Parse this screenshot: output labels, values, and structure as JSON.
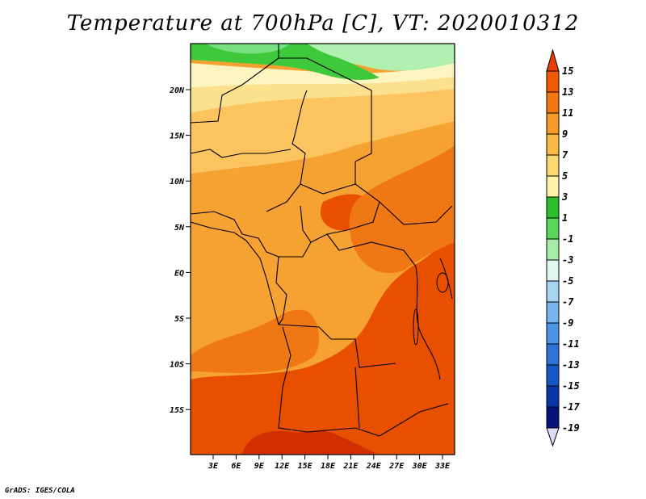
{
  "title": "Temperature at 700hPa [C], VT: 2020010312",
  "credit": "GrADS: IGES/COLA",
  "map": {
    "lat_labels": [
      "20N",
      "15N",
      "10N",
      "5N",
      "EQ",
      "5S",
      "10S",
      "15S"
    ],
    "lon_labels": [
      "3E",
      "6E",
      "9E",
      "12E",
      "15E",
      "18E",
      "21E",
      "24E",
      "27E",
      "30E",
      "33E"
    ],
    "colors": {
      "c15": "#d03000",
      "c13": "#e85000",
      "c11": "#f07814",
      "c9": "#f6a232",
      "c7": "#fbc45e",
      "c5": "#fbe08e",
      "c3": "#fdf5c0",
      "c1": "#3ec93c",
      "cm1": "#78e080",
      "cm3": "#b0f0b0"
    }
  },
  "colorbar": {
    "labels": [
      "15",
      "13",
      "11",
      "9",
      "7",
      "5",
      "3",
      "1",
      "-1",
      "-3",
      "-5",
      "-7",
      "-9",
      "-11",
      "-13",
      "-15",
      "-17",
      "-19"
    ],
    "colors": [
      "#e83c00",
      "#f05a00",
      "#f47810",
      "#f89a28",
      "#faba44",
      "#fcd870",
      "#fef2aa",
      "#2cbe2c",
      "#5ad65a",
      "#a6eea6",
      "#e0f6ee",
      "#a8d4f4",
      "#78b4ee",
      "#4c94e6",
      "#2e74d8",
      "#1656c6",
      "#0a36a8",
      "#04147a",
      "#dcdcf4"
    ]
  }
}
